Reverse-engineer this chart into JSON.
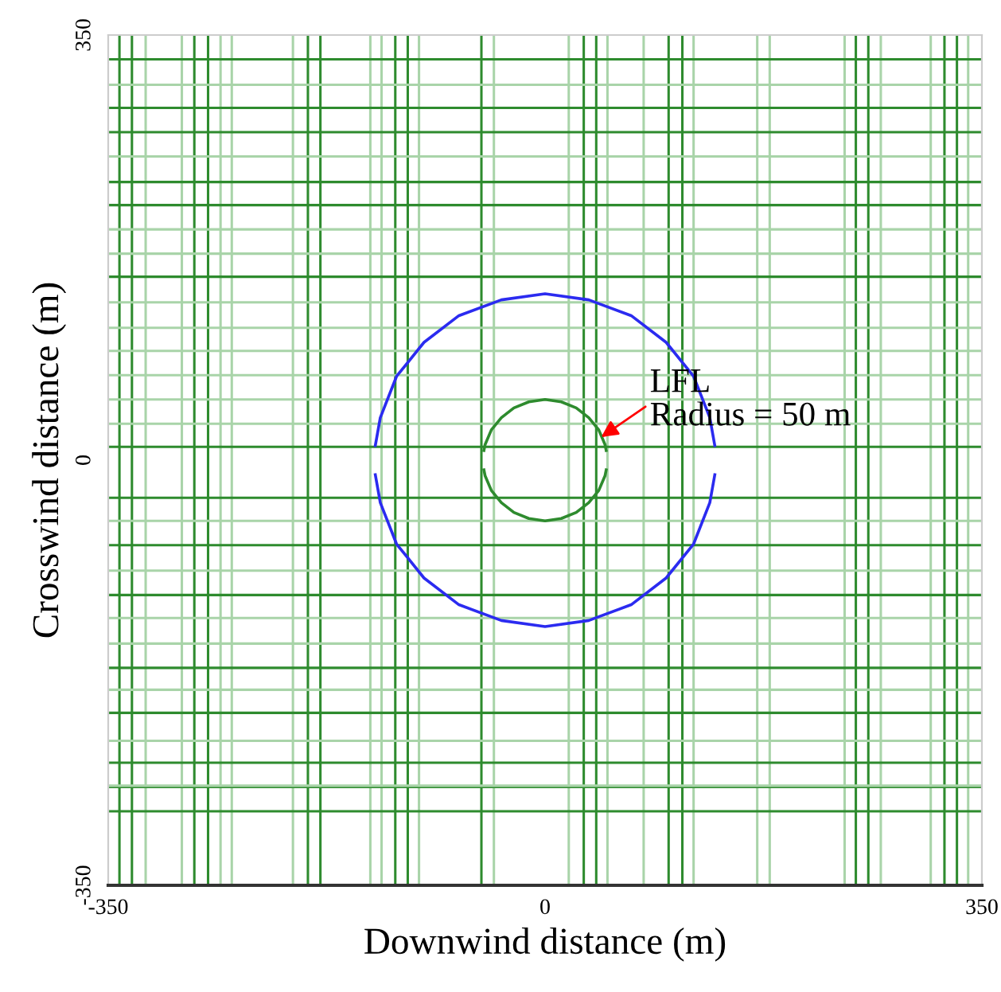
{
  "chart_data": {
    "type": "line",
    "xlabel": "Downwind distance (m)",
    "ylabel": "Crosswind distance (m)",
    "xlim": [
      -350,
      350
    ],
    "ylim": [
      -350,
      350
    ],
    "xticks": [
      -350,
      0,
      350
    ],
    "yticks": [
      -350,
      0,
      350
    ],
    "grid": false,
    "legend": false,
    "marker": "none",
    "line_style": "solid",
    "series": [
      {
        "color": "#2b2bf0",
        "x": [
          -136,
          -132,
          -119,
          -97,
          -69,
          -35,
          0,
          35,
          69,
          97,
          119,
          132,
          136
        ],
        "values": [
          12,
          35,
          69,
          97,
          119,
          132,
          137,
          132,
          119,
          97,
          69,
          35,
          12
        ]
      },
      {
        "color": "#2b2bf0",
        "x": [
          -136,
          -132,
          -119,
          -97,
          -69,
          -35,
          0,
          35,
          69,
          97,
          119,
          132,
          136
        ],
        "values": [
          -12,
          -35,
          -69,
          -97,
          -119,
          -132,
          -137,
          -132,
          -119,
          -97,
          -69,
          -35,
          -12
        ]
      },
      {
        "color": "#2e8b2e",
        "x": [
          -49,
          -48,
          -43,
          -35,
          -25,
          -13,
          0,
          13,
          25,
          35,
          43,
          48,
          49
        ],
        "values": [
          8,
          13,
          25,
          35,
          43,
          48,
          50,
          48,
          43,
          35,
          25,
          13,
          8
        ]
      },
      {
        "color": "#2e8b2e",
        "x": [
          -49,
          -48,
          -43,
          -35,
          -25,
          -13,
          0,
          13,
          25,
          35,
          43,
          48,
          49
        ],
        "values": [
          -8,
          -13,
          -25,
          -35,
          -43,
          -48,
          -50,
          -48,
          -43,
          -35,
          -25,
          -13,
          -8
        ]
      }
    ],
    "annotations": [
      {
        "text": "LFL\nRadius = 50 m",
        "x": 45,
        "y": 19
      }
    ],
    "ref_lines": [
      {
        "axis": "x",
        "value": -341,
        "color": "#2e8b2e"
      },
      {
        "axis": "x",
        "value": -331,
        "color": "#2e8b2e"
      },
      {
        "axis": "x",
        "value": -281,
        "color": "#2e8b2e"
      },
      {
        "axis": "x",
        "value": -270,
        "color": "#2e8b2e"
      },
      {
        "axis": "x",
        "value": -190,
        "color": "#2e8b2e"
      },
      {
        "axis": "x",
        "value": -180,
        "color": "#2e8b2e"
      },
      {
        "axis": "x",
        "value": -120,
        "color": "#2e8b2e"
      },
      {
        "axis": "x",
        "value": -110,
        "color": "#2e8b2e"
      },
      {
        "axis": "x",
        "value": -51,
        "color": "#2e8b2e"
      },
      {
        "axis": "x",
        "value": 31,
        "color": "#2e8b2e"
      },
      {
        "axis": "x",
        "value": 41,
        "color": "#2e8b2e"
      },
      {
        "axis": "x",
        "value": 99,
        "color": "#2e8b2e"
      },
      {
        "axis": "x",
        "value": 110,
        "color": "#2e8b2e"
      },
      {
        "axis": "x",
        "value": 249,
        "color": "#2e8b2e"
      },
      {
        "axis": "x",
        "value": 259,
        "color": "#2e8b2e"
      },
      {
        "axis": "x",
        "value": 320,
        "color": "#2e8b2e"
      },
      {
        "axis": "x",
        "value": 330,
        "color": "#2e8b2e"
      },
      {
        "axis": "x",
        "value": -320,
        "color": "#a9d4a9"
      },
      {
        "axis": "x",
        "value": -291,
        "color": "#a9d4a9"
      },
      {
        "axis": "x",
        "value": -260,
        "color": "#a9d4a9"
      },
      {
        "axis": "x",
        "value": -251,
        "color": "#a9d4a9"
      },
      {
        "axis": "x",
        "value": -202,
        "color": "#a9d4a9"
      },
      {
        "axis": "x",
        "value": -140,
        "color": "#a9d4a9"
      },
      {
        "axis": "x",
        "value": -131,
        "color": "#a9d4a9"
      },
      {
        "axis": "x",
        "value": -101,
        "color": "#a9d4a9"
      },
      {
        "axis": "x",
        "value": -41,
        "color": "#a9d4a9"
      },
      {
        "axis": "x",
        "value": 19,
        "color": "#a9d4a9"
      },
      {
        "axis": "x",
        "value": 50,
        "color": "#a9d4a9"
      },
      {
        "axis": "x",
        "value": 79,
        "color": "#a9d4a9"
      },
      {
        "axis": "x",
        "value": 119,
        "color": "#a9d4a9"
      },
      {
        "axis": "x",
        "value": 170,
        "color": "#a9d4a9"
      },
      {
        "axis": "x",
        "value": 180,
        "color": "#a9d4a9"
      },
      {
        "axis": "x",
        "value": 240,
        "color": "#a9d4a9"
      },
      {
        "axis": "x",
        "value": 269,
        "color": "#a9d4a9"
      },
      {
        "axis": "x",
        "value": 309,
        "color": "#a9d4a9"
      },
      {
        "axis": "x",
        "value": 339,
        "color": "#a9d4a9"
      },
      {
        "axis": "y",
        "value": 330,
        "color": "#2e8b2e"
      },
      {
        "axis": "y",
        "value": 290,
        "color": "#2e8b2e"
      },
      {
        "axis": "y",
        "value": 270,
        "color": "#2e8b2e"
      },
      {
        "axis": "y",
        "value": 229,
        "color": "#2e8b2e"
      },
      {
        "axis": "y",
        "value": 210,
        "color": "#2e8b2e"
      },
      {
        "axis": "y",
        "value": 151,
        "color": "#2e8b2e"
      },
      {
        "axis": "y",
        "value": 11,
        "color": "#2e8b2e"
      },
      {
        "axis": "y",
        "value": -31,
        "color": "#2e8b2e"
      },
      {
        "axis": "y",
        "value": -70,
        "color": "#2e8b2e"
      },
      {
        "axis": "y",
        "value": -111,
        "color": "#2e8b2e"
      },
      {
        "axis": "y",
        "value": -171,
        "color": "#2e8b2e"
      },
      {
        "axis": "y",
        "value": -208,
        "color": "#2e8b2e"
      },
      {
        "axis": "y",
        "value": -249,
        "color": "#2e8b2e"
      },
      {
        "axis": "y",
        "value": -269,
        "color": "#2e8b2e"
      },
      {
        "axis": "y",
        "value": -289,
        "color": "#2e8b2e"
      },
      {
        "axis": "y",
        "value": 309,
        "color": "#a9d4a9"
      },
      {
        "axis": "y",
        "value": 250,
        "color": "#a9d4a9"
      },
      {
        "axis": "y",
        "value": 190,
        "color": "#a9d4a9"
      },
      {
        "axis": "y",
        "value": 170,
        "color": "#a9d4a9"
      },
      {
        "axis": "y",
        "value": 130,
        "color": "#a9d4a9"
      },
      {
        "axis": "y",
        "value": 109,
        "color": "#a9d4a9"
      },
      {
        "axis": "y",
        "value": 90,
        "color": "#a9d4a9"
      },
      {
        "axis": "y",
        "value": 70,
        "color": "#a9d4a9"
      },
      {
        "axis": "y",
        "value": 50,
        "color": "#a9d4a9"
      },
      {
        "axis": "y",
        "value": 30,
        "color": "#a9d4a9"
      },
      {
        "axis": "y",
        "value": -50,
        "color": "#a9d4a9"
      },
      {
        "axis": "y",
        "value": -91,
        "color": "#a9d4a9"
      },
      {
        "axis": "y",
        "value": -130,
        "color": "#a9d4a9"
      },
      {
        "axis": "y",
        "value": -151,
        "color": "#a9d4a9"
      },
      {
        "axis": "y",
        "value": -189,
        "color": "#a9d4a9"
      },
      {
        "axis": "y",
        "value": -231,
        "color": "#a9d4a9"
      },
      {
        "axis": "y",
        "value": -268,
        "color": "#a9d4a9"
      }
    ]
  }
}
